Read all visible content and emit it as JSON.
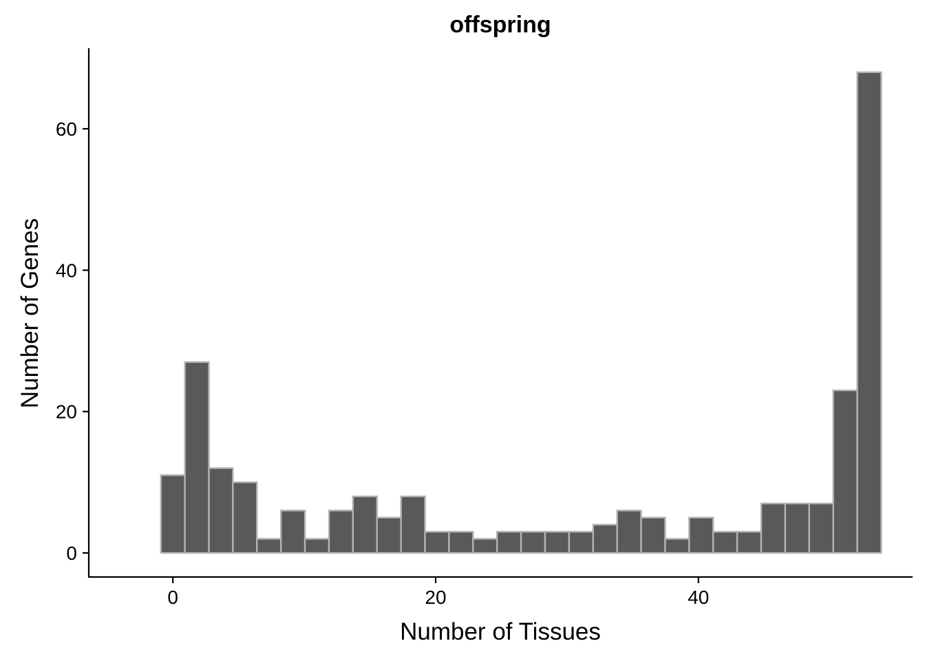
{
  "chart_data": {
    "type": "bar",
    "title": "offspring",
    "xlabel": "Number of Tissues",
    "ylabel": "Number of Genes",
    "bin_width": 1.8276,
    "bin_start": -0.9138,
    "values": [
      11,
      27,
      12,
      10,
      2,
      6,
      2,
      6,
      8,
      5,
      8,
      3,
      3,
      2,
      3,
      3,
      3,
      3,
      4,
      6,
      5,
      2,
      5,
      3,
      3,
      7,
      7,
      7,
      23,
      68
    ],
    "xlim": [
      -6.4,
      56.3
    ],
    "ylim": [
      -3.4,
      71.4
    ],
    "x_ticks": [
      0,
      20,
      40
    ],
    "y_ticks": [
      0,
      20,
      40,
      60
    ],
    "grid": false,
    "colors": {
      "bar_fill": "#595959",
      "bar_stroke": "#b3b3b3",
      "axis": "#000000"
    }
  }
}
